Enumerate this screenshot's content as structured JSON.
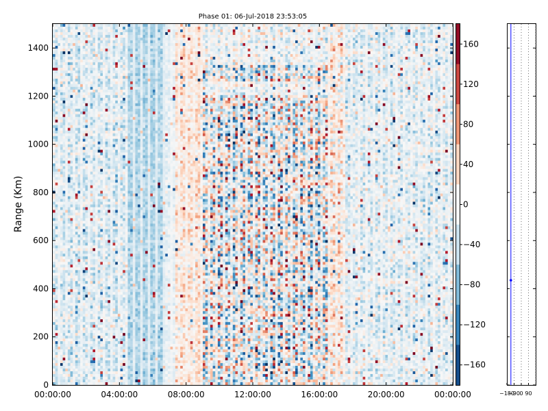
{
  "chart_data": {
    "type": "heatmap",
    "title": "Phase 01: 06-Jul-2018 23:53:05",
    "xlabel": "",
    "ylabel": "Range (Km)",
    "x_ticks": [
      "00:00:00",
      "04:00:00",
      "08:00:00",
      "12:00:00",
      "16:00:00",
      "20:00:00",
      "00:00:00"
    ],
    "x_range_hours": [
      0,
      24
    ],
    "y_ticks": [
      0,
      200,
      400,
      600,
      800,
      1000,
      1200,
      1400
    ],
    "ylim": [
      0,
      1500
    ],
    "colorbar": {
      "range": [
        -180,
        180
      ],
      "ticks": [
        160,
        120,
        80,
        40,
        0,
        -40,
        -80,
        -120,
        -160
      ],
      "tick_labels": [
        "160",
        "120",
        "80",
        "40",
        "0",
        "−40",
        "−80",
        "−120",
        "−160"
      ],
      "colormap": "RdBu_r",
      "low_color": "#053061",
      "mid_color": "#f7f7f7",
      "high_color": "#67001f"
    },
    "activity_profile": [
      {
        "from": 0,
        "to": 4.5,
        "mean": -25,
        "spread": 45
      },
      {
        "from": 4.5,
        "to": 6.7,
        "mean": -55,
        "spread": 25
      },
      {
        "from": 6.7,
        "to": 7.4,
        "mean": -15,
        "spread": 20
      },
      {
        "from": 7.4,
        "to": 9,
        "mean": 25,
        "spread": 40
      },
      {
        "from": 9,
        "to": 16.5,
        "mean": -10,
        "spread": 120
      },
      {
        "from": 16.5,
        "to": 17.5,
        "mean": 20,
        "spread": 60
      },
      {
        "from": 17.5,
        "to": 24,
        "mean": -20,
        "spread": 45
      }
    ],
    "side_panel": {
      "x_ticks": [
        "−180",
        "−90",
        "0",
        "90"
      ],
      "x_range": [
        -180,
        180
      ],
      "dashed_lines": [
        -90,
        0,
        90,
        180
      ],
      "solid_line": -130,
      "marker": {
        "x": -130,
        "y": 435
      }
    }
  }
}
